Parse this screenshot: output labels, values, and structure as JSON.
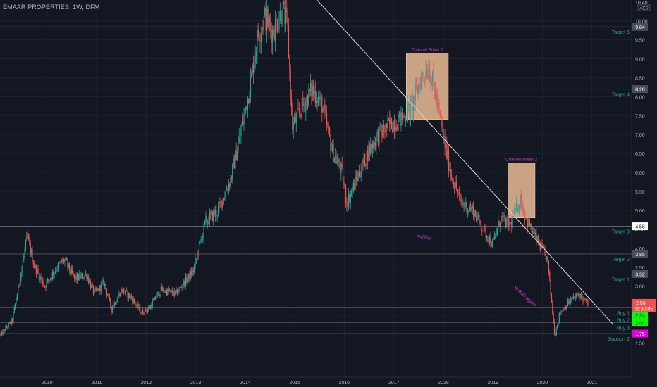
{
  "chart_data": {
    "type": "candlestick",
    "title": "EMAAR PROPERTIES, 1W, DFM",
    "currency": "AED",
    "y_axis_top_label": "10.40",
    "ylim": [
      0.6,
      10.55
    ],
    "y_ticks": [
      1.5,
      2.5,
      3.0,
      3.5,
      4.0,
      4.5,
      5.0,
      5.5,
      6.0,
      6.5,
      7.0,
      7.5,
      8.0,
      8.5,
      9.0,
      9.5,
      10.0
    ],
    "y_tick_labels": [
      "1.50",
      "2.50",
      "3.00",
      "3.50",
      "4.00",
      "4.50",
      "5.00",
      "5.50",
      "6.00",
      "6.50",
      "7.00",
      "7.50",
      "8.00",
      "8.50",
      "9.00",
      "9.50",
      "10.00"
    ],
    "x_ticks": [
      {
        "label": "2010",
        "t": 2010.0
      },
      {
        "label": "2011",
        "t": 2011.0
      },
      {
        "label": "2012",
        "t": 2012.0
      },
      {
        "label": "2013",
        "t": 2013.0
      },
      {
        "label": "2014",
        "t": 2014.0
      },
      {
        "label": "2015",
        "t": 2015.0
      },
      {
        "label": "2016",
        "t": 2016.0
      },
      {
        "label": "2017",
        "t": 2017.0
      },
      {
        "label": "2018",
        "t": 2018.0
      },
      {
        "label": "2019",
        "t": 2019.0
      },
      {
        "label": "2020",
        "t": 2020.0
      },
      {
        "label": "2021",
        "t": 2021.0
      }
    ],
    "xlim": [
      2009.05,
      2021.8
    ],
    "price_anchors": [
      [
        2009.05,
        1.7
      ],
      [
        2009.3,
        2.1
      ],
      [
        2009.45,
        3.2
      ],
      [
        2009.6,
        4.3
      ],
      [
        2009.75,
        3.5
      ],
      [
        2009.95,
        3.0
      ],
      [
        2010.2,
        3.5
      ],
      [
        2010.35,
        3.7
      ],
      [
        2010.55,
        3.2
      ],
      [
        2010.8,
        3.3
      ],
      [
        2010.95,
        2.8
      ],
      [
        2011.15,
        3.1
      ],
      [
        2011.3,
        2.4
      ],
      [
        2011.5,
        2.9
      ],
      [
        2011.7,
        2.7
      ],
      [
        2011.9,
        2.3
      ],
      [
        2012.05,
        2.4
      ],
      [
        2012.3,
        2.9
      ],
      [
        2012.6,
        2.8
      ],
      [
        2012.95,
        3.4
      ],
      [
        2013.2,
        4.7
      ],
      [
        2013.45,
        5.0
      ],
      [
        2013.7,
        5.8
      ],
      [
        2013.9,
        7.0
      ],
      [
        2014.1,
        8.3
      ],
      [
        2014.25,
        9.6
      ],
      [
        2014.4,
        10.1
      ],
      [
        2014.55,
        9.7
      ],
      [
        2014.75,
        10.3
      ],
      [
        2014.85,
        9.9
      ],
      [
        2014.95,
        7.2
      ],
      [
        2015.1,
        7.6
      ],
      [
        2015.35,
        8.2
      ],
      [
        2015.55,
        7.8
      ],
      [
        2015.75,
        6.6
      ],
      [
        2015.95,
        6.0
      ],
      [
        2016.05,
        5.2
      ],
      [
        2016.15,
        5.5
      ],
      [
        2016.3,
        6.0
      ],
      [
        2016.5,
        6.6
      ],
      [
        2016.7,
        7.0
      ],
      [
        2016.95,
        7.3
      ],
      [
        2017.15,
        7.4
      ],
      [
        2017.35,
        7.7
      ],
      [
        2017.55,
        8.5
      ],
      [
        2017.7,
        8.8
      ],
      [
        2017.85,
        8.0
      ],
      [
        2018.0,
        6.9
      ],
      [
        2018.15,
        6.0
      ],
      [
        2018.35,
        5.2
      ],
      [
        2018.6,
        5.0
      ],
      [
        2018.8,
        4.5
      ],
      [
        2019.0,
        4.1
      ],
      [
        2019.15,
        4.8
      ],
      [
        2019.35,
        4.6
      ],
      [
        2019.55,
        5.3
      ],
      [
        2019.7,
        4.7
      ],
      [
        2019.85,
        4.3
      ],
      [
        2020.1,
        3.7
      ],
      [
        2020.25,
        1.7
      ],
      [
        2020.35,
        2.3
      ],
      [
        2020.55,
        2.6
      ],
      [
        2020.75,
        2.8
      ],
      [
        2020.85,
        2.6
      ],
      [
        2020.92,
        2.56
      ]
    ],
    "horizontal_levels": [
      {
        "label": "Target 5",
        "price": 9.84,
        "price_label": "9.84"
      },
      {
        "label": "Target 4",
        "price": 8.2,
        "price_label": "8.20"
      },
      {
        "label": "Target 3",
        "price": 4.58,
        "price_label": "4.58"
      },
      {
        "label": "Target 2",
        "price": 3.85,
        "price_label": "3.85"
      },
      {
        "label": "Target 1",
        "price": 3.32,
        "price_label": "3.32"
      },
      {
        "label": "Buy 1",
        "price": 2.43,
        "price_label": "2.43"
      },
      {
        "label": "Buy 2",
        "price": 2.24,
        "price_label": "2.24"
      },
      {
        "label": "Buy 3",
        "price": 2.04,
        "price_label": "2.04"
      },
      {
        "label": "Support 2",
        "price": 1.75,
        "price_label": "1.75"
      }
    ],
    "current_price": {
      "value": 2.56,
      "label": "2.56",
      "countdown": "01:30:05"
    },
    "rectangles": [
      {
        "label": "Channel Break 1",
        "t0": 2017.25,
        "t1": 2018.1,
        "p0": 7.4,
        "p1": 9.15
      },
      {
        "label": "Channel Break 2",
        "t0": 2019.3,
        "t1": 2019.85,
        "p0": 4.8,
        "p1": 6.25
      }
    ],
    "trendline": {
      "t0": 2015.45,
      "p0": 10.55,
      "t1": 2021.42,
      "p1": 2.0
    },
    "annotations": [
      {
        "text": "Bullish",
        "t": 2017.45,
        "p": 4.3,
        "angle": 12
      },
      {
        "text": "Bullish again",
        "t": 2019.42,
        "p": 2.95,
        "angle": 42
      }
    ],
    "colors": {
      "up": "#26a69a",
      "down": "#ef5350",
      "background": "#131722",
      "target_text": "#26a69a",
      "annotation": "#c040c0",
      "rectangle": "#f3c29b",
      "buy_label_bg": "#00ff00",
      "support_label_bg": "#e000e0",
      "current_label_bg": "#ef5350"
    }
  }
}
